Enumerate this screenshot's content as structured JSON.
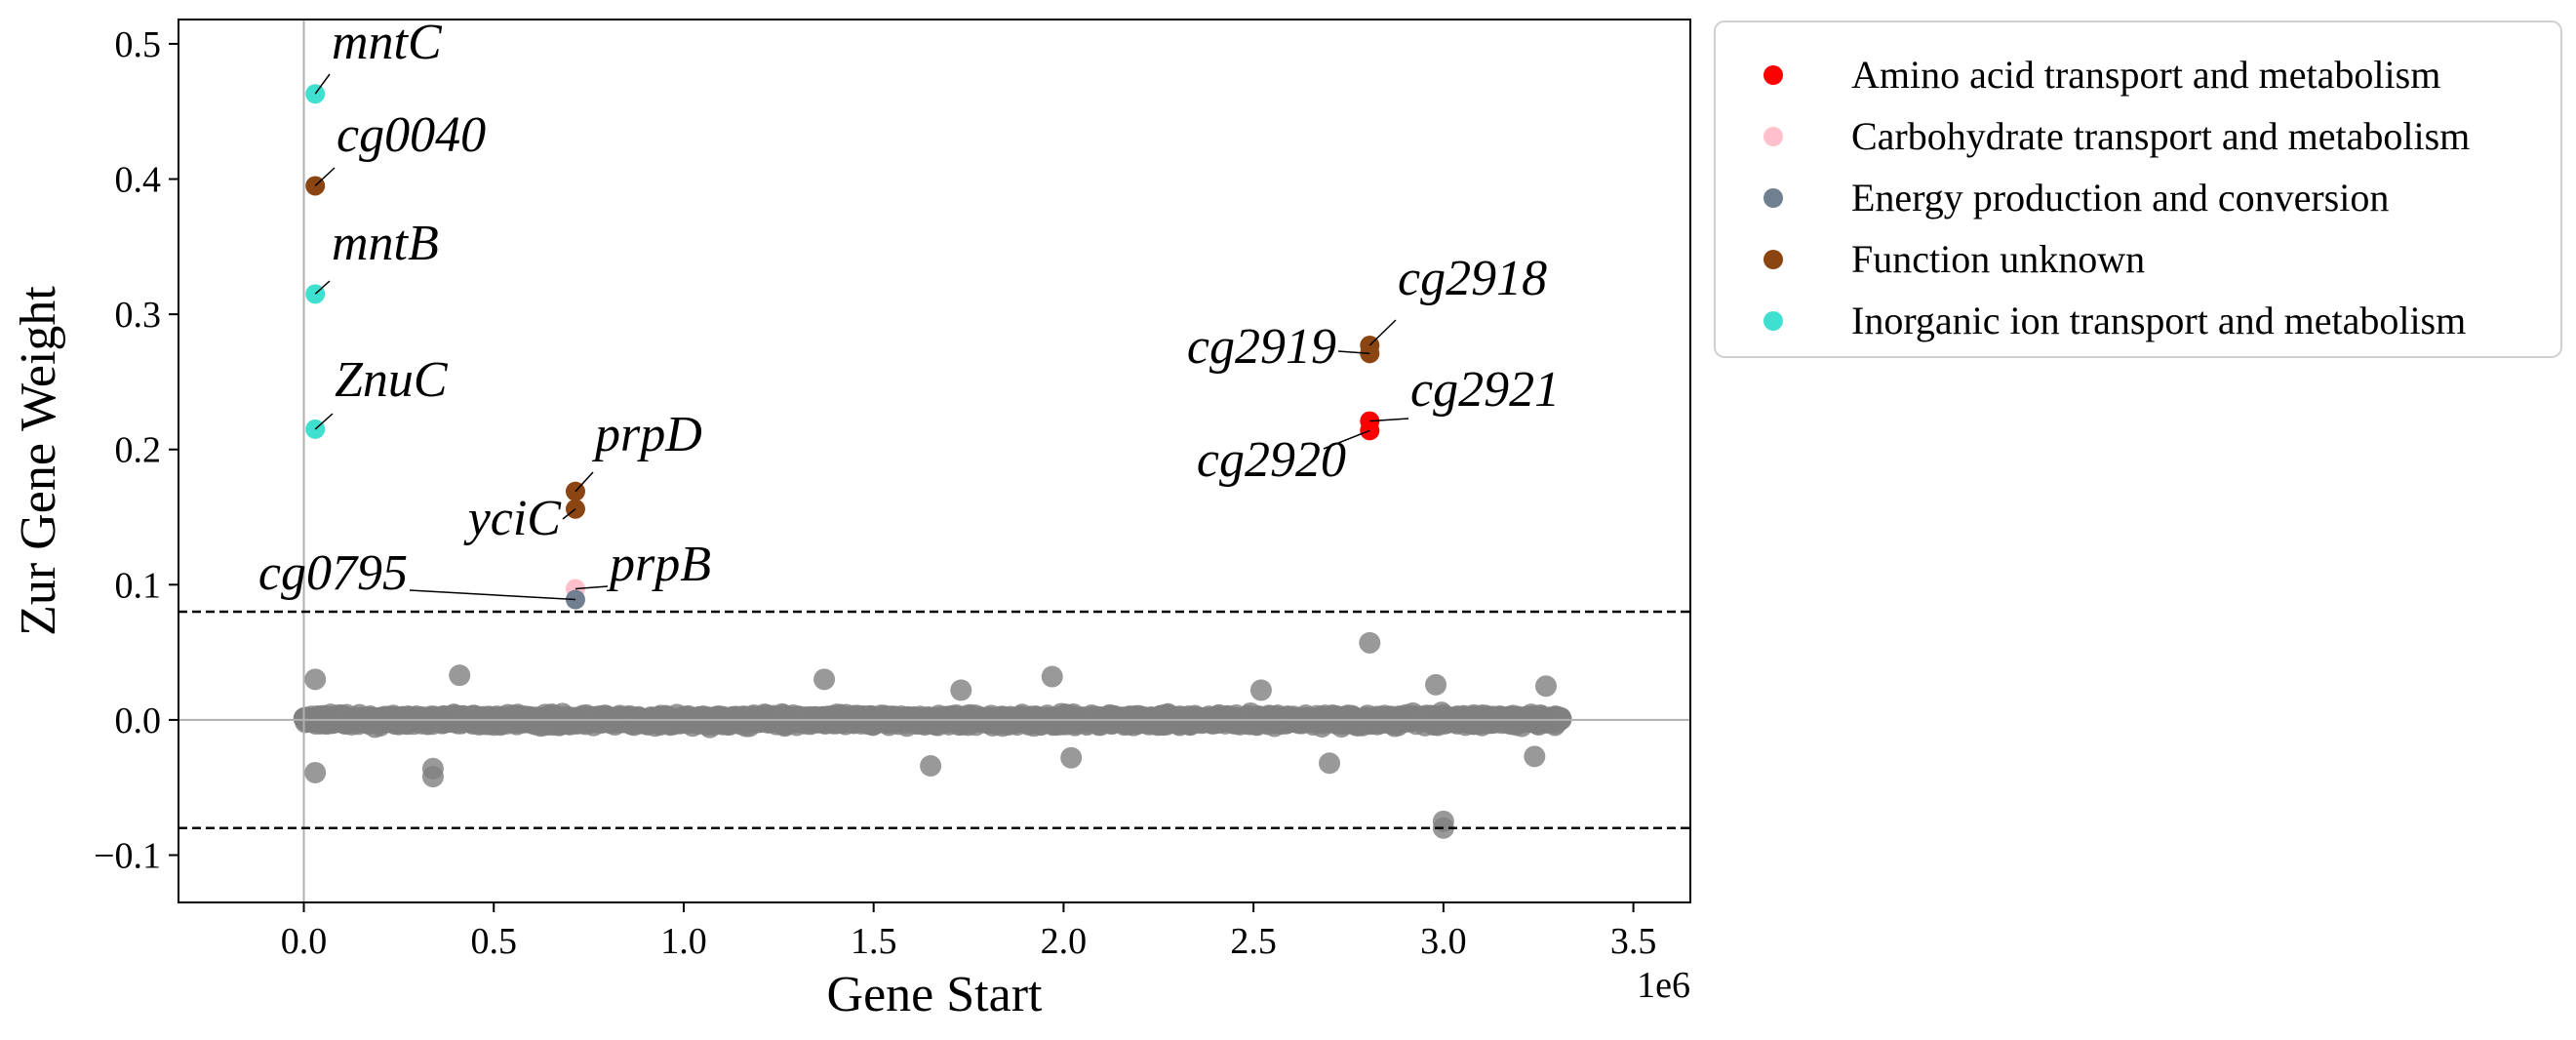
{
  "chart_data": {
    "type": "scatter",
    "xlabel": "Gene Start",
    "ylabel": "Zur Gene Weight",
    "x_offset_label": "1e6",
    "xlim": [
      -330000,
      3650000
    ],
    "ylim": [
      -0.135,
      0.518
    ],
    "xticks": [
      0,
      500000,
      1000000,
      1500000,
      2000000,
      2500000,
      3000000,
      3500000
    ],
    "xtick_labels": [
      "0.0",
      "0.5",
      "1.0",
      "1.5",
      "2.0",
      "2.5",
      "3.0",
      "3.5"
    ],
    "yticks": [
      -0.1,
      0.0,
      0.1,
      0.2,
      0.3,
      0.4,
      0.5
    ],
    "ytick_labels": [
      "−0.1",
      "0.0",
      "0.1",
      "0.2",
      "0.3",
      "0.4",
      "0.5"
    ],
    "threshold": 0.08,
    "grid": false,
    "legend_position": "outside-right",
    "series": [
      {
        "name": "Amino acid transport and metabolism",
        "color": "#ff0000",
        "points": [
          {
            "x": 2806000,
            "y": 0.221,
            "label": "cg2921"
          },
          {
            "x": 2806000,
            "y": 0.214,
            "label": "cg2920"
          }
        ]
      },
      {
        "name": "Carbohydrate transport and metabolism",
        "color": "#ffc0cb",
        "points": [
          {
            "x": 715000,
            "y": 0.097,
            "label": "prpB"
          }
        ]
      },
      {
        "name": "Energy production and conversion",
        "color": "#708090",
        "points": [
          {
            "x": 715000,
            "y": 0.089,
            "label": "cg0795"
          }
        ]
      },
      {
        "name": "Function unknown",
        "color": "#8b4513",
        "points": [
          {
            "x": 30000,
            "y": 0.395,
            "label": "cg0040"
          },
          {
            "x": 715000,
            "y": 0.169,
            "label": "prpD"
          },
          {
            "x": 715000,
            "y": 0.156,
            "label": "yciC"
          },
          {
            "x": 2806000,
            "y": 0.277,
            "label": "cg2918"
          },
          {
            "x": 2806000,
            "y": 0.271,
            "label": "cg2919"
          }
        ]
      },
      {
        "name": "Inorganic ion transport and metabolism",
        "color": "#40e0d0",
        "points": [
          {
            "x": 30000,
            "y": 0.463,
            "label": "mntC"
          },
          {
            "x": 30000,
            "y": 0.315,
            "label": "mntB"
          },
          {
            "x": 30000,
            "y": 0.215,
            "label": "ZnuC"
          }
        ]
      }
    ],
    "background_points": {
      "color": "#808080",
      "x_range": [
        0,
        3310000
      ],
      "count": 2900,
      "outliers": [
        {
          "x": 2806000,
          "y": 0.057
        },
        {
          "x": 1370000,
          "y": 0.03
        },
        {
          "x": 1970000,
          "y": 0.032
        },
        {
          "x": 1730000,
          "y": 0.022
        },
        {
          "x": 2520000,
          "y": 0.022
        },
        {
          "x": 3000000,
          "y": -0.075
        },
        {
          "x": 3000000,
          "y": -0.08
        },
        {
          "x": 30000,
          "y": -0.039
        },
        {
          "x": 340000,
          "y": -0.036
        },
        {
          "x": 340000,
          "y": -0.042
        },
        {
          "x": 1650000,
          "y": -0.034
        },
        {
          "x": 2020000,
          "y": -0.028
        },
        {
          "x": 2700000,
          "y": -0.032
        },
        {
          "x": 3270000,
          "y": 0.025
        },
        {
          "x": 30000,
          "y": 0.03
        },
        {
          "x": 410000,
          "y": 0.033
        },
        {
          "x": 2980000,
          "y": 0.026
        },
        {
          "x": 3240000,
          "y": -0.027
        }
      ]
    }
  }
}
